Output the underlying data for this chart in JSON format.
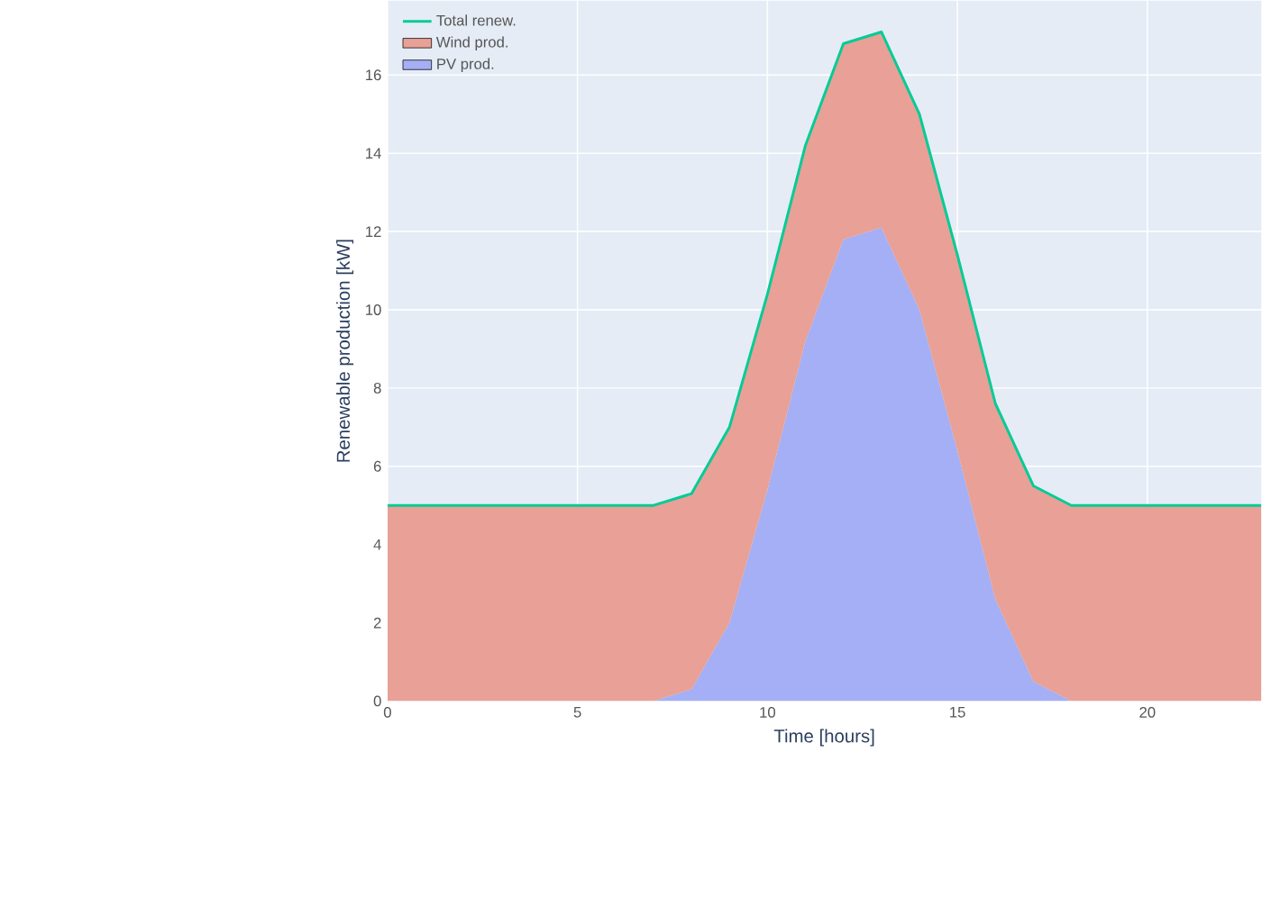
{
  "chart_data": {
    "type": "area",
    "stacked": true,
    "xlabel": "Time [hours]",
    "ylabel": "Renewable production [kW]",
    "x": [
      0,
      1,
      2,
      3,
      4,
      5,
      6,
      7,
      8,
      9,
      10,
      11,
      12,
      13,
      14,
      15,
      16,
      17,
      18,
      19,
      20,
      21,
      22,
      23
    ],
    "xlim": [
      0,
      23
    ],
    "ylim": [
      0,
      17.9
    ],
    "xticks": [
      0,
      5,
      10,
      15,
      20
    ],
    "yticks": [
      0,
      2,
      4,
      6,
      8,
      10,
      12,
      14,
      16
    ],
    "grid": true,
    "legend": "top left",
    "series": [
      {
        "name": "PV prod.",
        "color": "#a4aff5",
        "values": [
          0,
          0,
          0,
          0,
          0,
          0,
          0,
          0,
          0.3,
          2.0,
          5.4,
          9.2,
          11.8,
          12.1,
          10.0,
          6.4,
          2.6,
          0.5,
          0,
          0,
          0,
          0,
          0,
          0
        ]
      },
      {
        "name": "Wind prod.",
        "color": "#e9a096",
        "values": [
          5,
          5,
          5,
          5,
          5,
          5,
          5,
          5,
          5,
          5,
          5,
          5,
          5,
          5,
          5,
          5,
          5,
          5,
          5,
          5,
          5,
          5,
          5,
          5
        ]
      },
      {
        "name": "Total renew.",
        "type": "line",
        "color": "#00cc96",
        "values": [
          5,
          5,
          5,
          5,
          5,
          5,
          5,
          5,
          5.3,
          7.0,
          10.4,
          14.2,
          16.8,
          17.1,
          15.0,
          11.4,
          7.6,
          5.5,
          5,
          5,
          5,
          5,
          5,
          5
        ]
      }
    ]
  }
}
